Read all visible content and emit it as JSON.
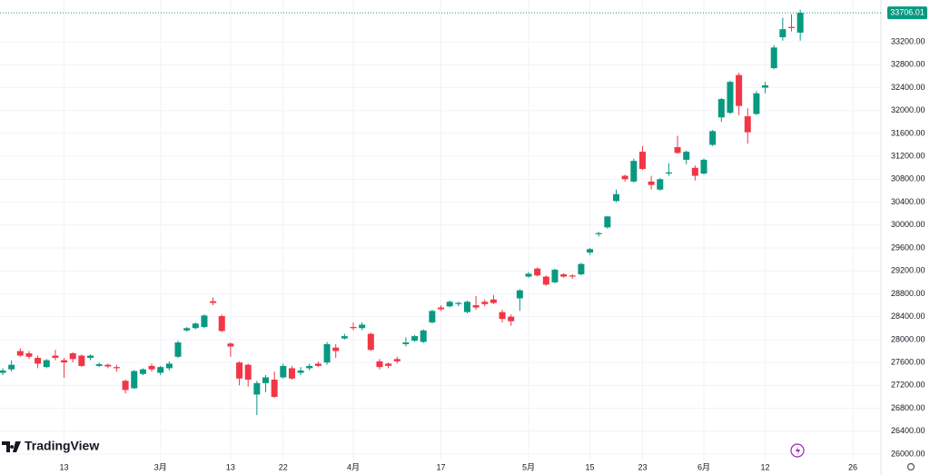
{
  "chart_data": {
    "type": "candlestick",
    "logo": "TradingView",
    "up_color": "#089981",
    "down_color": "#f23645",
    "open": [
      27420,
      27480,
      27800,
      27760,
      27680,
      27520,
      27720,
      27640,
      27760,
      27720,
      27680,
      27540,
      27560,
      27520,
      27280,
      27150,
      27400,
      27540,
      27420,
      27500,
      27700,
      28160,
      28200,
      28220,
      28670,
      28410,
      27930,
      27600,
      27560,
      27040,
      27240,
      27300,
      27340,
      27500,
      27420,
      27500,
      27580,
      27600,
      27860,
      28020,
      28220,
      28200,
      28100,
      27620,
      27580,
      27660,
      27920,
      27980,
      27960,
      28300,
      28560,
      28580,
      28620,
      28480,
      28600,
      28660,
      28700,
      28480,
      28400,
      28720,
      29100,
      29240,
      29100,
      29000,
      29140,
      29120,
      29140,
      29520,
      29840,
      29960,
      30420,
      30860,
      30760,
      31280,
      30760,
      30620,
      30900,
      31360,
      31140,
      31000,
      30900,
      31400,
      31880,
      31960,
      32620,
      31900,
      31940,
      32400,
      32740,
      33280,
      33460,
      33360
    ],
    "high": [
      27500,
      27640,
      27850,
      27800,
      27720,
      27660,
      27820,
      27680,
      27780,
      27740,
      27740,
      27600,
      27580,
      27560,
      27300,
      27470,
      27500,
      27580,
      27540,
      27620,
      27980,
      28220,
      28300,
      28440,
      28740,
      28440,
      27950,
      27620,
      27580,
      27280,
      27380,
      27440,
      27580,
      27540,
      27520,
      27580,
      27620,
      27960,
      27920,
      28100,
      28300,
      28300,
      28120,
      27660,
      27600,
      27700,
      28040,
      28080,
      28180,
      28520,
      28600,
      28680,
      28660,
      28680,
      28760,
      28700,
      28780,
      28520,
      28440,
      28880,
      29180,
      29260,
      29120,
      29240,
      29160,
      29140,
      29340,
      29600,
      29880,
      30160,
      30620,
      30880,
      31160,
      31380,
      30860,
      30820,
      31080,
      31560,
      31300,
      31040,
      31160,
      31660,
      32220,
      32520,
      32660,
      32040,
      32340,
      32500,
      33140,
      33620,
      33680,
      33760
    ],
    "low": [
      27380,
      27440,
      27700,
      27660,
      27500,
      27500,
      27640,
      27330,
      27600,
      27520,
      27640,
      27520,
      27500,
      27440,
      27060,
      27140,
      27380,
      27440,
      27380,
      27460,
      27680,
      28140,
      28180,
      28200,
      28600,
      28130,
      27700,
      27200,
      27180,
      26680,
      27080,
      26980,
      27320,
      27300,
      27380,
      27460,
      27520,
      27560,
      27680,
      28000,
      28160,
      28160,
      27800,
      27480,
      27500,
      27580,
      27880,
      27960,
      27940,
      28280,
      28500,
      28560,
      28580,
      28460,
      28520,
      28580,
      28620,
      28300,
      28240,
      28500,
      29080,
      29100,
      28940,
      28980,
      29080,
      29060,
      29120,
      29480,
      29800,
      29940,
      30400,
      30760,
      30740,
      30960,
      30620,
      30600,
      30860,
      31240,
      31060,
      30780,
      30880,
      31380,
      31800,
      31940,
      31920,
      31420,
      31920,
      32300,
      32720,
      33220,
      33380,
      33220
    ],
    "close": [
      27460,
      27560,
      27720,
      27700,
      27580,
      27640,
      27680,
      27600,
      27660,
      27540,
      27720,
      27570,
      27530,
      27500,
      27120,
      27450,
      27480,
      27480,
      27520,
      27580,
      27950,
      28200,
      28280,
      28420,
      28640,
      28150,
      27880,
      27320,
      27300,
      27240,
      27340,
      27000,
      27540,
      27320,
      27460,
      27540,
      27540,
      27920,
      27800,
      28060,
      28200,
      28260,
      27820,
      27520,
      27540,
      27620,
      27950,
      28060,
      28160,
      28500,
      28530,
      28660,
      28640,
      28660,
      28560,
      28620,
      28640,
      28360,
      28320,
      28860,
      29150,
      29120,
      28960,
      29220,
      29100,
      29100,
      29320,
      29580,
      29860,
      30150,
      30540,
      30800,
      31120,
      30980,
      30700,
      30800,
      30920,
      31260,
      31280,
      30860,
      31140,
      31640,
      32200,
      32500,
      32080,
      31620,
      32300,
      32440,
      33100,
      33420,
      33440,
      33706.01
    ],
    "last_price": 33706.01,
    "ylim": [
      25889,
      33930
    ],
    "yticks": [
      {
        "value": 26000,
        "label": "26000.00"
      },
      {
        "value": 26400,
        "label": "26400.00"
      },
      {
        "value": 26800,
        "label": "26800.00"
      },
      {
        "value": 27200,
        "label": "27200.00"
      },
      {
        "value": 27600,
        "label": "27600.00"
      },
      {
        "value": 28000,
        "label": "28000.00"
      },
      {
        "value": 28400,
        "label": "28400.00"
      },
      {
        "value": 28800,
        "label": "28800.00"
      },
      {
        "value": 29200,
        "label": "29200.00"
      },
      {
        "value": 29600,
        "label": "29600.00"
      },
      {
        "value": 30000,
        "label": "30000.00"
      },
      {
        "value": 30400,
        "label": "30400.00"
      },
      {
        "value": 30800,
        "label": "30800.00"
      },
      {
        "value": 31200,
        "label": "31200.00"
      },
      {
        "value": 31600,
        "label": "31600.00"
      },
      {
        "value": 32000,
        "label": "32000.00"
      },
      {
        "value": 32400,
        "label": "32400.00"
      },
      {
        "value": 32800,
        "label": "32800.00"
      },
      {
        "value": 33200,
        "label": "33200.00"
      }
    ],
    "xticks": [
      {
        "value": 7,
        "label": "13"
      },
      {
        "value": 18,
        "label": "3月"
      },
      {
        "value": 26,
        "label": "13"
      },
      {
        "value": 32,
        "label": "22"
      },
      {
        "value": 40,
        "label": "4月"
      },
      {
        "value": 50,
        "label": "17"
      },
      {
        "value": 60,
        "label": "5月"
      },
      {
        "value": 67,
        "label": "15"
      },
      {
        "value": 73,
        "label": "23"
      },
      {
        "value": 80,
        "label": "6月"
      },
      {
        "value": 87,
        "label": "12"
      },
      {
        "value": 97,
        "label": "26"
      }
    ],
    "grid": true
  }
}
